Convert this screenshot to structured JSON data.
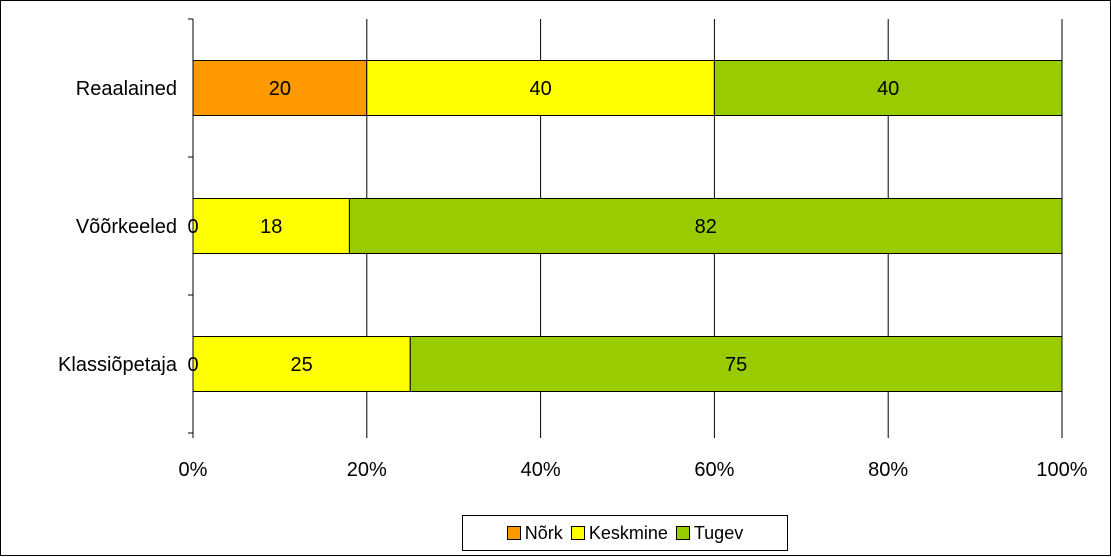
{
  "chart_data": {
    "type": "bar",
    "orientation": "horizontal",
    "stacked": "percent",
    "categories": [
      "Reaalained",
      "Võõrkeeled",
      "Klassiõpetaja"
    ],
    "series": [
      {
        "name": "Nõrk",
        "values": [
          20,
          0,
          0
        ],
        "color": "#FF9900"
      },
      {
        "name": "Keskmine",
        "values": [
          40,
          18,
          25
        ],
        "color": "#FFFF00"
      },
      {
        "name": "Tugev",
        "values": [
          40,
          82,
          75
        ],
        "color": "#99CC00"
      }
    ],
    "xlim": [
      0,
      100
    ],
    "x_ticks": [
      "0%",
      "20%",
      "40%",
      "60%",
      "80%",
      "100%"
    ],
    "title": "",
    "xlabel": "",
    "ylabel": "",
    "grid": "vertical",
    "legend_position": "bottom",
    "data_labels": true
  }
}
